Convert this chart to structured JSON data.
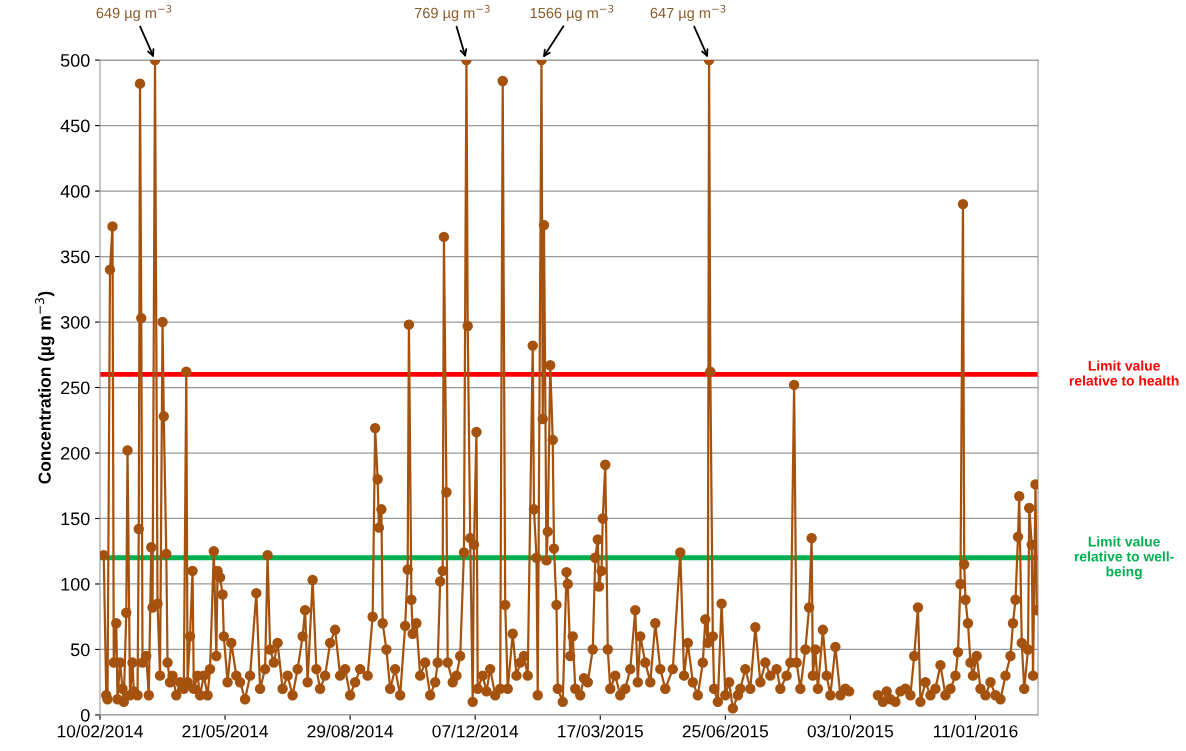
{
  "chart_data": {
    "type": "line",
    "ylabel": "Concentration (µg m$^{−3}$)",
    "marker": "circle",
    "line_style": "solid",
    "grid": "y",
    "legend": false,
    "xlim": [
      "2014-02-10",
      "2016-03-01"
    ],
    "xticks": [
      {
        "value": "2014-02-10",
        "label": "10/02/2014"
      },
      {
        "value": "2014-05-21",
        "label": "21/05/2014"
      },
      {
        "value": "2014-08-29",
        "label": "29/08/2014"
      },
      {
        "value": "2014-12-07",
        "label": "07/12/2014"
      },
      {
        "value": "2015-03-17",
        "label": "17/03/2015"
      },
      {
        "value": "2015-06-25",
        "label": "25/06/2015"
      },
      {
        "value": "2015-10-03",
        "label": "03/10/2015"
      },
      {
        "value": "2016-01-11",
        "label": "11/01/2016"
      }
    ],
    "ylim": [
      0,
      500
    ],
    "yticks": [
      0,
      50,
      100,
      150,
      200,
      250,
      300,
      350,
      400,
      450,
      500
    ],
    "ref_lines": [
      {
        "axis": "y",
        "value": 260,
        "label": "Limit value\nrelative to health",
        "color": "#ff0000",
        "line_style": "solid"
      },
      {
        "axis": "y",
        "value": 120,
        "label": "Limit value\nrelative to well-\nbeing",
        "color": "#00b050",
        "line_style": "solid"
      }
    ],
    "annotations": [
      {
        "text": "649 µg m$^{−3}$",
        "x": "2014-03-26",
        "y": 500
      },
      {
        "text": "769 µg m$^{−3}$",
        "x": "2014-11-30",
        "y": 500
      },
      {
        "text": "1566 µg m$^{−3}$",
        "x": "2015-01-29",
        "y": 500
      },
      {
        "text": "647 µg m$^{−3}$",
        "x": "2015-06-12",
        "y": 500
      }
    ],
    "series": [
      {
        "color": "#a5520f",
        "x": [
          "2014-02-13",
          "2014-02-15",
          "2014-02-16",
          "2014-02-18",
          "2014-02-20",
          "2014-02-21",
          "2014-02-23",
          "2014-02-24",
          "2014-02-26",
          "2014-02-28",
          "2014-03-01",
          "2014-03-03",
          "2014-03-04",
          "2014-03-06",
          "2014-03-08",
          "2014-03-09",
          "2014-03-12",
          "2014-03-13",
          "2014-03-14",
          "2014-03-15",
          "2014-03-16",
          "2014-03-19",
          "2014-03-21",
          "2014-03-23",
          "2014-03-24",
          "2014-03-26",
          "2014-03-28",
          "2014-03-30",
          "2014-04-01",
          "2014-04-02",
          "2014-04-04",
          "2014-04-05",
          "2014-04-07",
          "2014-04-09",
          "2014-04-12",
          "2014-04-15",
          "2014-04-18",
          "2014-04-20",
          "2014-04-21",
          "2014-04-23",
          "2014-04-25",
          "2014-04-26",
          "2014-04-29",
          "2014-05-01",
          "2014-05-04",
          "2014-05-07",
          "2014-05-09",
          "2014-05-12",
          "2014-05-14",
          "2014-05-15",
          "2014-05-17",
          "2014-05-19",
          "2014-05-20",
          "2014-05-23",
          "2014-05-26",
          "2014-05-30",
          "2014-06-02",
          "2014-06-06",
          "2014-06-10",
          "2014-06-15",
          "2014-06-18",
          "2014-06-22",
          "2014-06-24",
          "2014-06-26",
          "2014-06-29",
          "2014-07-02",
          "2014-07-06",
          "2014-07-10",
          "2014-07-14",
          "2014-07-18",
          "2014-07-22",
          "2014-07-24",
          "2014-07-26",
          "2014-07-30",
          "2014-08-02",
          "2014-08-05",
          "2014-08-09",
          "2014-08-13",
          "2014-08-17",
          "2014-08-21",
          "2014-08-25",
          "2014-08-29",
          "2014-09-02",
          "2014-09-06",
          "2014-09-12",
          "2014-09-16",
          "2014-09-18",
          "2014-09-20",
          "2014-09-21",
          "2014-09-23",
          "2014-09-24",
          "2014-09-27",
          "2014-09-30",
          "2014-10-04",
          "2014-10-08",
          "2014-10-12",
          "2014-10-14",
          "2014-10-15",
          "2014-10-17",
          "2014-10-18",
          "2014-10-21",
          "2014-10-24",
          "2014-10-28",
          "2014-11-01",
          "2014-11-05",
          "2014-11-07",
          "2014-11-09",
          "2014-11-11",
          "2014-11-12",
          "2014-11-14",
          "2014-11-15",
          "2014-11-19",
          "2014-11-22",
          "2014-11-25",
          "2014-11-28",
          "2014-11-30",
          "2014-12-01",
          "2014-12-03",
          "2014-12-05",
          "2014-12-06",
          "2014-12-08",
          "2014-12-09",
          "2014-12-13",
          "2014-12-16",
          "2014-12-19",
          "2014-12-23",
          "2014-12-27",
          "2014-12-29",
          "2014-12-31",
          "2015-01-02",
          "2015-01-06",
          "2015-01-09",
          "2015-01-12",
          "2015-01-15",
          "2015-01-18",
          "2015-01-22",
          "2015-01-23",
          "2015-01-25",
          "2015-01-26",
          "2015-01-29",
          "2015-01-30",
          "2015-01-31",
          "2015-02-02",
          "2015-02-03",
          "2015-02-05",
          "2015-02-07",
          "2015-02-08",
          "2015-02-10",
          "2015-02-11",
          "2015-02-15",
          "2015-02-18",
          "2015-02-19",
          "2015-02-21",
          "2015-02-23",
          "2015-02-25",
          "2015-03-01",
          "2015-03-04",
          "2015-03-07",
          "2015-03-11",
          "2015-03-13",
          "2015-03-15",
          "2015-03-16",
          "2015-03-18",
          "2015-03-19",
          "2015-03-21",
          "2015-03-23",
          "2015-03-25",
          "2015-03-29",
          "2015-04-02",
          "2015-04-06",
          "2015-04-10",
          "2015-04-14",
          "2015-04-16",
          "2015-04-18",
          "2015-04-22",
          "2015-04-26",
          "2015-04-30",
          "2015-05-04",
          "2015-05-08",
          "2015-05-14",
          "2015-05-20",
          "2015-05-23",
          "2015-05-26",
          "2015-05-30",
          "2015-06-03",
          "2015-06-07",
          "2015-06-09",
          "2015-06-11",
          "2015-06-12",
          "2015-06-13",
          "2015-06-15",
          "2015-06-16",
          "2015-06-19",
          "2015-06-22",
          "2015-06-25",
          "2015-06-28",
          "2015-07-01",
          "2015-07-05",
          "2015-07-07",
          "2015-07-11",
          "2015-07-15",
          "2015-07-19",
          "2015-07-23",
          "2015-07-27",
          "2015-07-31",
          "2015-08-05",
          "2015-08-08",
          "2015-08-13",
          "2015-08-16",
          "2015-08-19",
          "2015-08-21",
          "2015-08-24",
          "2015-08-28",
          "2015-08-31",
          "2015-09-02",
          "2015-09-03",
          "2015-09-05",
          "2015-09-07",
          "2015-09-11",
          "2015-09-14",
          "2015-09-17",
          "2015-09-21",
          "2015-09-25",
          "2015-09-29",
          "2015-10-02",
          "2015-10-15",
          "2015-10-25",
          "2015-10-29",
          "2015-11-01",
          "2015-11-04",
          "2015-11-08",
          "2015-11-12",
          "2015-11-16",
          "2015-11-20",
          "2015-11-23",
          "2015-11-26",
          "2015-11-28",
          "2015-12-02",
          "2015-12-06",
          "2015-12-10",
          "2015-12-14",
          "2015-12-18",
          "2015-12-22",
          "2015-12-26",
          "2015-12-28",
          "2015-12-30",
          "2016-01-01",
          "2016-01-02",
          "2016-01-03",
          "2016-01-05",
          "2016-01-07",
          "2016-01-09",
          "2016-01-12",
          "2016-01-15",
          "2016-01-19",
          "2016-01-23",
          "2016-01-27",
          "2016-01-31",
          "2016-02-04",
          "2016-02-08",
          "2016-02-10",
          "2016-02-12",
          "2016-02-14",
          "2016-02-15",
          "2016-02-17",
          "2016-02-19",
          "2016-02-22",
          "2016-02-23",
          "2016-02-25",
          "2016-02-26",
          "2016-02-28",
          "2016-02-29"
        ],
        "values": [
          122,
          15,
          12,
          340,
          373,
          40,
          70,
          12,
          40,
          20,
          10,
          78,
          202,
          15,
          40,
          18,
          15,
          142,
          482,
          303,
          40,
          45,
          15,
          128,
          82,
          500,
          85,
          30,
          300,
          228,
          123,
          40,
          25,
          30,
          15,
          25,
          20,
          262,
          25,
          60,
          110,
          20,
          30,
          15,
          30,
          15,
          35,
          125,
          45,
          110,
          105,
          92,
          60,
          25,
          55,
          30,
          25,
          12,
          30,
          93,
          20,
          35,
          122,
          50,
          40,
          55,
          20,
          30,
          15,
          35,
          60,
          80,
          25,
          103,
          35,
          20,
          30,
          55,
          65,
          30,
          35,
          15,
          25,
          35,
          30,
          75,
          219,
          180,
          143,
          157,
          70,
          50,
          20,
          35,
          15,
          68,
          111,
          298,
          88,
          62,
          70,
          30,
          40,
          15,
          25,
          40,
          102,
          110,
          365,
          170,
          40,
          25,
          30,
          45,
          124,
          500,
          297,
          135,
          10,
          130,
          216,
          20,
          30,
          18,
          35,
          15,
          20,
          484,
          84,
          20,
          62,
          30,
          40,
          45,
          30,
          282,
          157,
          120,
          15,
          500,
          226,
          374,
          118,
          140,
          267,
          210,
          127,
          84,
          20,
          10,
          109,
          100,
          45,
          60,
          20,
          15,
          28,
          25,
          50,
          120,
          134,
          98,
          110,
          150,
          191,
          50,
          20,
          30,
          15,
          20,
          35,
          80,
          25,
          60,
          40,
          25,
          70,
          35,
          20,
          35,
          124,
          30,
          55,
          25,
          15,
          40,
          73,
          55,
          500,
          262,
          60,
          20,
          10,
          85,
          15,
          25,
          5,
          15,
          20,
          35,
          20,
          67,
          25,
          40,
          30,
          35,
          20,
          30,
          40,
          252,
          40,
          20,
          50,
          82,
          135,
          30,
          50,
          20,
          65,
          30,
          15,
          52,
          15,
          20,
          18,
          null,
          15,
          10,
          18,
          12,
          10,
          18,
          20,
          15,
          45,
          82,
          10,
          25,
          15,
          20,
          38,
          15,
          20,
          30,
          48,
          100,
          390,
          115,
          88,
          70,
          40,
          30,
          45,
          20,
          15,
          25,
          15,
          12,
          30,
          45,
          70,
          88,
          136,
          167,
          55,
          20,
          50,
          158,
          130,
          30,
          176,
          80
        ]
      }
    ]
  }
}
